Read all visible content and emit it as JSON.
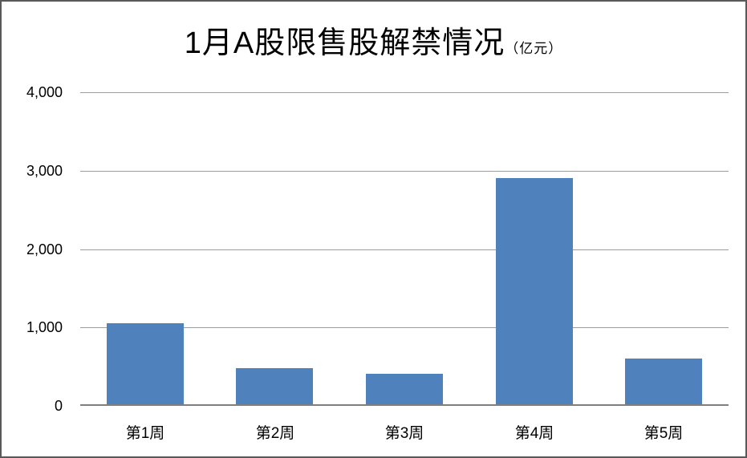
{
  "title": {
    "main": "1月A股限售股解禁情况",
    "unit": "（亿元）"
  },
  "colors": {
    "bar": "#4F81BD",
    "gridline": "#9C9C9C",
    "axis": "#7F7F7F",
    "frame_border": "#595959",
    "background": "#FFFFFF",
    "text": "#000000"
  },
  "chart_data": {
    "type": "bar",
    "title": "1月A股限售股解禁情况（亿元）",
    "categories": [
      "第1周",
      "第2周",
      "第3周",
      "第4周",
      "第5周"
    ],
    "values": [
      1040,
      475,
      395,
      2900,
      595
    ],
    "xlabel": "",
    "ylabel": "",
    "ylim": [
      0,
      4000
    ],
    "y_ticks": [
      0,
      1000,
      2000,
      3000,
      4000
    ],
    "y_tick_labels": [
      "0",
      "1,000",
      "2,000",
      "3,000",
      "4,000"
    ],
    "grid": "horizontal-only",
    "legend": "none"
  }
}
